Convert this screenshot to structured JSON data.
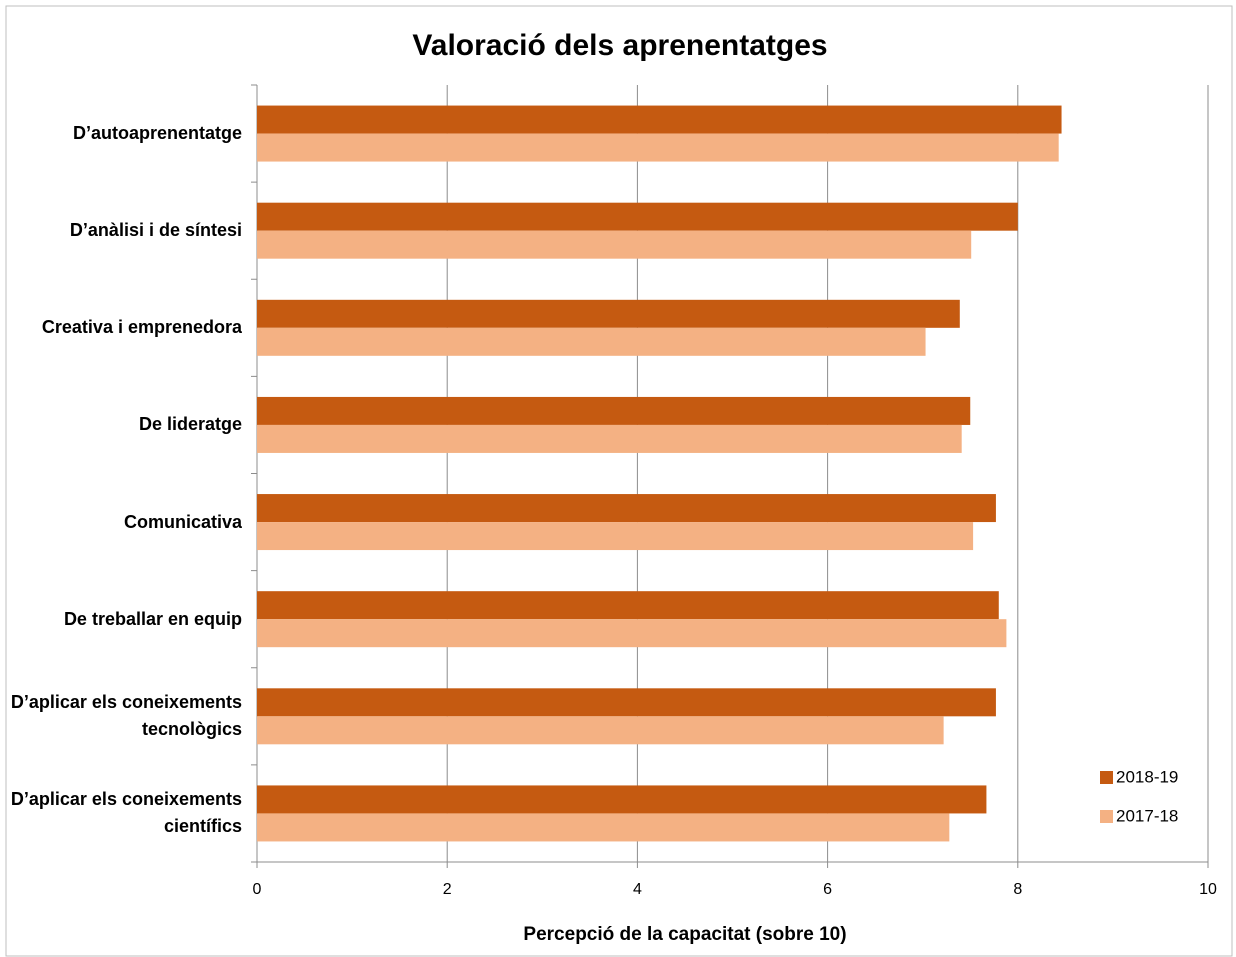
{
  "chart_data": {
    "type": "bar",
    "orientation": "horizontal",
    "title": "Valoració dels aprenentatges",
    "x_label": "Percepció de la capacitat (sobre 10)",
    "categories": [
      "D’autoaprenentatge",
      "D’anàlisi i de síntesi",
      "Creativa i emprenedora",
      "De lideratge",
      "Comunicativa",
      "De treballar en equip",
      "D’aplicar els coneixements tecnològics",
      "D’aplicar els coneixements científics"
    ],
    "series": [
      {
        "name": "2018-19",
        "color": "#c55a11",
        "values": [
          8.46,
          8.0,
          7.39,
          7.5,
          7.77,
          7.8,
          7.77,
          7.67
        ]
      },
      {
        "name": "2017-18",
        "color": "#f4b183",
        "values": [
          8.43,
          7.51,
          7.03,
          7.41,
          7.53,
          7.88,
          7.22,
          7.28
        ]
      }
    ],
    "xlim": [
      0,
      10
    ],
    "xticks": [
      0,
      2,
      4,
      6,
      8,
      10
    ],
    "grid": true,
    "legend": "lower right"
  }
}
